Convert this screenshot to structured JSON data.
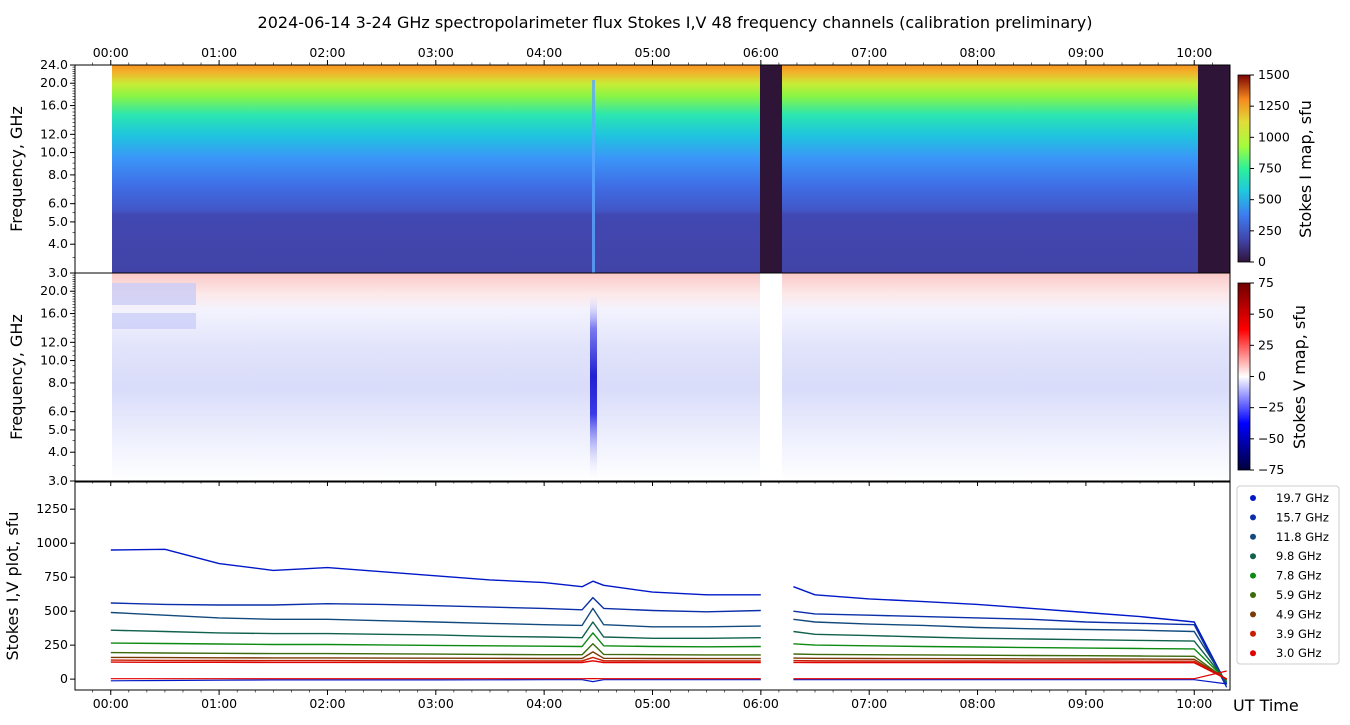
{
  "title": "2024-06-14     3-24 GHz spectropolarimeter flux   Stokes I,V   48 frequency channels   (calibration preliminary)",
  "x_axis": {
    "label": "UT Time",
    "range_hours": [
      -0.33,
      10.33
    ],
    "ticks": [
      {
        "h": 0,
        "label": "00:00"
      },
      {
        "h": 1,
        "label": "01:00"
      },
      {
        "h": 2,
        "label": "02:00"
      },
      {
        "h": 3,
        "label": "03:00"
      },
      {
        "h": 4,
        "label": "04:00"
      },
      {
        "h": 5,
        "label": "05:00"
      },
      {
        "h": 6,
        "label": "06:00"
      },
      {
        "h": 7,
        "label": "07:00"
      },
      {
        "h": 8,
        "label": "08:00"
      },
      {
        "h": 9,
        "label": "09:00"
      },
      {
        "h": 10,
        "label": "10:00"
      }
    ]
  },
  "freq_ticks": [
    {
      "f": 3,
      "label": "3.0"
    },
    {
      "f": 4,
      "label": "4.0"
    },
    {
      "f": 5,
      "label": "5.0"
    },
    {
      "f": 6,
      "label": "6.0"
    },
    {
      "f": 8,
      "label": "8.0"
    },
    {
      "f": 10,
      "label": "10.0"
    },
    {
      "f": 12,
      "label": "12.0"
    },
    {
      "f": 16,
      "label": "16.0"
    },
    {
      "f": 20,
      "label": "20.0"
    },
    {
      "f": 24,
      "label": "24.0"
    }
  ],
  "panels": {
    "stokes_i_map": {
      "ylabel": "Frequency, GHz",
      "colorbar_label": "Stokes I map, sfu",
      "colorbar_range": [
        0,
        1500
      ],
      "colorbar_ticks": [
        {
          "v": 0,
          "label": "0"
        },
        {
          "v": 250,
          "label": "250"
        },
        {
          "v": 500,
          "label": "500"
        },
        {
          "v": 750,
          "label": "750"
        },
        {
          "v": 1000,
          "label": "1000"
        },
        {
          "v": 1250,
          "label": "1250"
        },
        {
          "v": 1500,
          "label": "1500"
        }
      ]
    },
    "stokes_v_map": {
      "ylabel": "Frequency, GHz",
      "colorbar_label": "Stokes V map, sfu",
      "colorbar_range": [
        -75,
        75
      ],
      "colorbar_ticks": [
        {
          "v": -75,
          "label": "−75"
        },
        {
          "v": -50,
          "label": "−50"
        },
        {
          "v": -25,
          "label": "−25"
        },
        {
          "v": 0,
          "label": "0"
        },
        {
          "v": 25,
          "label": "25"
        },
        {
          "v": 50,
          "label": "50"
        },
        {
          "v": 75,
          "label": "75"
        }
      ]
    },
    "plot": {
      "ylabel": "Stokes I,V plot, sfu",
      "ylim": [
        -80,
        1450
      ],
      "yticks": [
        {
          "v": 0,
          "label": "0"
        },
        {
          "v": 250,
          "label": "250"
        },
        {
          "v": 500,
          "label": "500"
        },
        {
          "v": 750,
          "label": "750"
        },
        {
          "v": 1000,
          "label": "1000"
        },
        {
          "v": 1250,
          "label": "1250"
        }
      ]
    }
  },
  "chart_data": {
    "type": "line",
    "title": "2024-06-14 3-24 GHz spectropolarimeter flux Stokes I,V 48 frequency channels (calibration preliminary)",
    "xlabel": "UT Time",
    "ylabel": "Stokes I,V plot, sfu",
    "ylim": [
      -80,
      1450
    ],
    "x": [
      0.0,
      0.5,
      1.0,
      1.5,
      2.0,
      2.5,
      3.0,
      3.5,
      4.0,
      4.35,
      4.45,
      4.55,
      5.0,
      5.5,
      6.0,
      6.3,
      6.5,
      7.0,
      7.5,
      8.0,
      8.5,
      9.0,
      9.5,
      10.0,
      10.3
    ],
    "gaps_hours": [
      [
        6.0,
        6.2
      ]
    ],
    "series": [
      {
        "name": "19.7 GHz",
        "color": "#0018c8",
        "values": [
          950,
          955,
          850,
          800,
          820,
          790,
          760,
          730,
          710,
          680,
          720,
          690,
          640,
          620,
          620,
          680,
          620,
          590,
          570,
          550,
          520,
          490,
          460,
          420,
          -40
        ]
      },
      {
        "name": "15.7 GHz",
        "color": "#0a2fa8",
        "values": [
          560,
          550,
          545,
          545,
          555,
          550,
          540,
          530,
          520,
          510,
          600,
          520,
          505,
          495,
          505,
          500,
          480,
          470,
          460,
          450,
          440,
          420,
          410,
          400,
          -60
        ]
      },
      {
        "name": "11.8 GHz",
        "color": "#124a7e",
        "values": [
          490,
          470,
          450,
          440,
          440,
          430,
          420,
          410,
          400,
          395,
          520,
          400,
          385,
          385,
          390,
          440,
          420,
          405,
          395,
          380,
          370,
          365,
          360,
          350,
          -30
        ]
      },
      {
        "name": "9.8 GHz",
        "color": "#11614d",
        "values": [
          360,
          350,
          340,
          335,
          335,
          330,
          325,
          315,
          310,
          305,
          420,
          310,
          300,
          300,
          305,
          350,
          330,
          320,
          310,
          300,
          295,
          290,
          285,
          280,
          -20
        ]
      },
      {
        "name": "7.8 GHz",
        "color": "#0d8a12",
        "values": [
          265,
          262,
          258,
          255,
          255,
          252,
          248,
          245,
          242,
          240,
          340,
          245,
          240,
          238,
          240,
          260,
          250,
          245,
          240,
          236,
          232,
          228,
          225,
          222,
          -10
        ]
      },
      {
        "name": "5.9 GHz",
        "color": "#3d6a0c",
        "values": [
          195,
          192,
          190,
          188,
          188,
          186,
          184,
          182,
          180,
          180,
          260,
          182,
          180,
          178,
          178,
          185,
          182,
          180,
          178,
          176,
          174,
          172,
          170,
          168,
          -5
        ]
      },
      {
        "name": "4.9 GHz",
        "color": "#7a3a05",
        "values": [
          160,
          158,
          157,
          156,
          156,
          155,
          154,
          153,
          152,
          152,
          200,
          153,
          152,
          151,
          151,
          155,
          153,
          152,
          151,
          150,
          149,
          148,
          147,
          146,
          0
        ]
      },
      {
        "name": "3.9 GHz",
        "color": "#c81e00",
        "values": [
          140,
          138,
          137,
          136,
          136,
          135,
          135,
          134,
          134,
          134,
          160,
          135,
          134,
          134,
          134,
          136,
          135,
          134,
          134,
          133,
          133,
          133,
          132,
          132,
          0
        ]
      },
      {
        "name": "3.0 GHz",
        "color": "#e00000",
        "values": [
          125,
          124,
          124,
          123,
          123,
          123,
          122,
          122,
          122,
          122,
          135,
          122,
          122,
          122,
          122,
          123,
          122,
          122,
          122,
          122,
          121,
          121,
          121,
          121,
          0
        ]
      }
    ],
    "stokes_v_traces": [
      {
        "name": "V 19.7 GHz",
        "color": "#0018c8",
        "values": [
          -12,
          -10,
          -8,
          -6,
          -6,
          -6,
          -6,
          -5,
          -4,
          -4,
          -18,
          -4,
          -4,
          -4,
          -4,
          -4,
          -4,
          -4,
          -4,
          -4,
          -4,
          -4,
          -4,
          -4,
          -35
        ]
      },
      {
        "name": "V 3.0 GHz",
        "color": "#e00000",
        "values": [
          3,
          3,
          3,
          3,
          3,
          3,
          3,
          3,
          3,
          3,
          4,
          3,
          3,
          3,
          3,
          3,
          3,
          3,
          3,
          3,
          3,
          3,
          3,
          3,
          60
        ]
      }
    ]
  }
}
